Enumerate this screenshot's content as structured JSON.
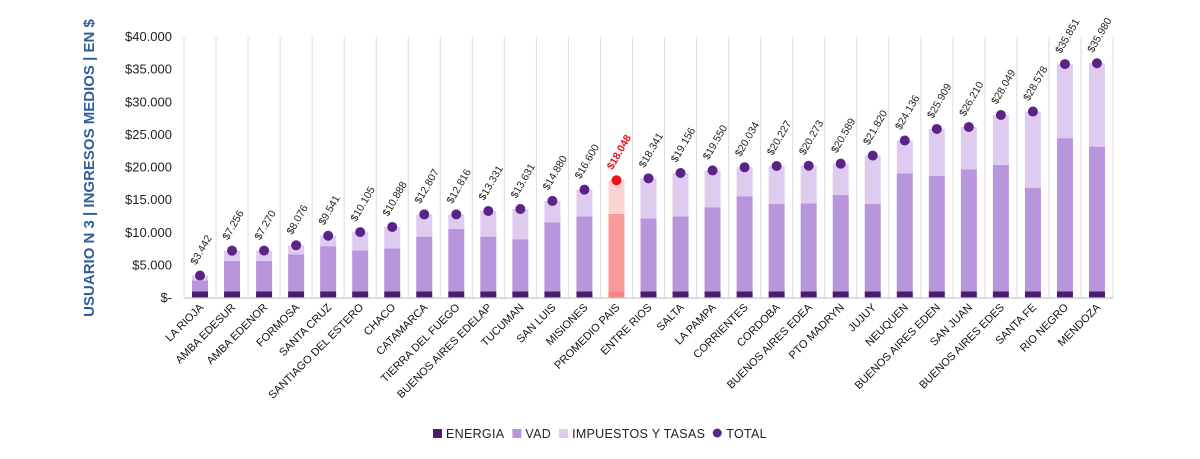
{
  "chart_data": {
    "type": "bar",
    "stacked": true,
    "title": "",
    "xlabel": "",
    "ylabel": "USUARIO N 3 | INGRESOS MEDIOS | EN $",
    "ylim": [
      0,
      40000
    ],
    "yticks": [
      "$-",
      "$5.000",
      "$10.000",
      "$15.000",
      "$20.000",
      "$25.000",
      "$30.000",
      "$35.000",
      "$40.000"
    ],
    "grid": "vertical separators",
    "legend_position": "bottom",
    "categories": [
      "LA RIOJA",
      "AMBA EDESUR",
      "AMBA EDENOR",
      "FORMOSA",
      "SANTA CRUZ",
      "SANTIAGO DEL ESTERO",
      "CHACO",
      "CATAMARCA",
      "TIERRA DEL FUEGO",
      "BUENOS AIRES EDELAP",
      "TUCUMAN",
      "SAN LUIS",
      "MISIONES",
      "PROMEDIO PAIS",
      "ENTRE RIOS",
      "SALTA",
      "LA PAMPA",
      "CORRIENTES",
      "CORDOBA",
      "BUENOS AIRES EDEA",
      "PTO MADRYN",
      "JUJUY",
      "NEUQUEN",
      "BUENOS AIRES EDEN",
      "SAN JUAN",
      "BUENOS AIRES EDES",
      "SANTA FE",
      "RIO NEGRO",
      "MENDOZA"
    ],
    "highlight_category": "PROMEDIO PAIS",
    "series": [
      {
        "name": "ENERGIA",
        "color": "#4b1d6f",
        "values": [
          1000,
          1000,
          1000,
          1000,
          1000,
          1000,
          1000,
          1000,
          1000,
          1000,
          1000,
          1000,
          1000,
          1000,
          1000,
          1000,
          1000,
          1000,
          1000,
          1000,
          1000,
          1000,
          1000,
          1000,
          1000,
          1000,
          1000,
          1000,
          1000
        ]
      },
      {
        "name": "VAD",
        "color": "#b995dc",
        "values": [
          1700,
          4700,
          4700,
          5700,
          6950,
          6300,
          6600,
          8400,
          9600,
          8400,
          8000,
          10600,
          11500,
          11900,
          11200,
          11500,
          12900,
          14600,
          13400,
          13500,
          14800,
          13400,
          18100,
          17700,
          18700,
          19400,
          15900,
          23500,
          22200
        ]
      },
      {
        "name": "IMPUESTOS Y TASAS",
        "color": "#dfcbf0",
        "values": [
          742,
          1556,
          1570,
          1376,
          1591,
          2805,
          3288,
          3407,
          2216,
          3931,
          4631,
          3280,
          4100,
          5148,
          6141,
          6656,
          5650,
          4434,
          5827,
          5773,
          4789,
          7420,
          5036,
          7209,
          6510,
          7649,
          11678,
          11351,
          12780
        ]
      },
      {
        "name": "TOTAL",
        "color": "#5b2388",
        "type": "scatter",
        "values": [
          3442,
          7256,
          7270,
          8076,
          9541,
          10105,
          10888,
          12807,
          12816,
          13331,
          13631,
          14880,
          16600,
          18048,
          18341,
          19156,
          19550,
          20034,
          20227,
          20273,
          20589,
          21820,
          24136,
          25909,
          26210,
          28049,
          28578,
          35851,
          35980
        ]
      }
    ],
    "data_labels": [
      "$3.442",
      "$7.256",
      "$7.270",
      "$8.076",
      "$9.541",
      "$10.105",
      "$10.888",
      "$12.807",
      "$12.816",
      "$13.331",
      "$13.631",
      "$14.880",
      "$16.600",
      "$18.048",
      "$18.341",
      "$19.156",
      "$19.550",
      "$20.034",
      "$20.227",
      "$20.273",
      "$20.589",
      "$21.820",
      "$24.136",
      "$25.909",
      "$26.210",
      "$28.049",
      "$28.578",
      "$35.851",
      "$35.980"
    ],
    "highlight_colors": {
      "ENERGIA": "#f48686",
      "VAD": "#f79a9a",
      "IMPUESTOS Y TASAS": "#fbd3d3",
      "TOTAL": "#e8121a",
      "label": "#e8121a"
    }
  }
}
